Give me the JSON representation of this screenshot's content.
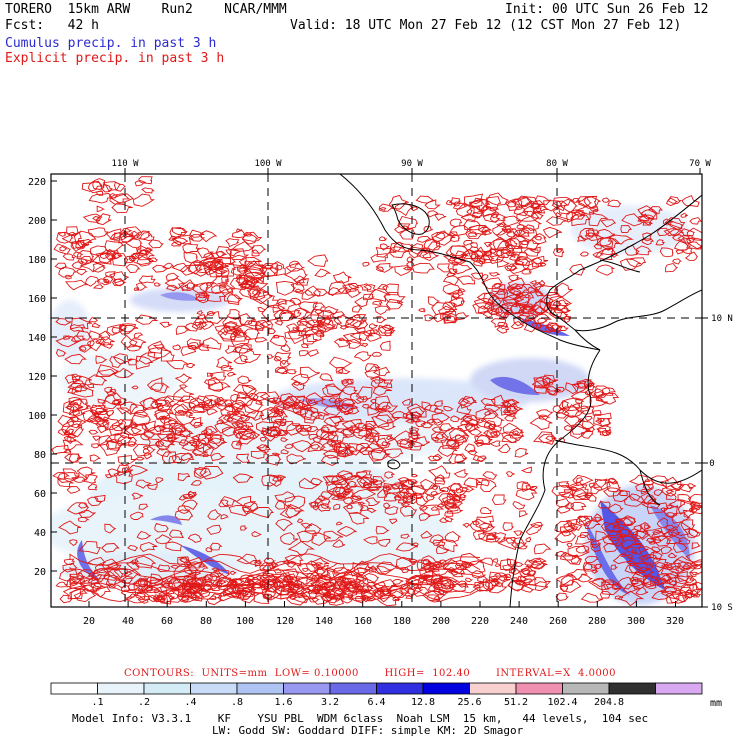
{
  "header": {
    "model": "TORERO  15km ARW    Run2    NCAR/MMM",
    "init": "Init: 00 UTC Sun 26 Feb 12",
    "fcst": "Fcst:   42 h",
    "valid": "Valid: 18 UTC Mon 27 Feb 12 (12 CST Mon 27 Feb 12)",
    "cumulus_label": "Cumulus precip. in past 3 h",
    "explicit_label": "Explicit precip. in past 3 h"
  },
  "colors": {
    "cumulus": "#2a2ad0",
    "explicit": "#e01818",
    "coast": "#000000",
    "grid": "#000000"
  },
  "map": {
    "top_lon_labels": [
      "110 W",
      "100 W",
      "90 W",
      "80 W",
      "70 W"
    ],
    "right_lat_labels": [
      "10 N",
      "0",
      "10 S"
    ],
    "left_ticks": [
      "220",
      "200",
      "180",
      "160",
      "140",
      "120",
      "100",
      "80",
      "60",
      "40",
      "20"
    ],
    "bottom_ticks": [
      "20",
      "40",
      "60",
      "80",
      "100",
      "120",
      "140",
      "160",
      "180",
      "200",
      "220",
      "240",
      "260",
      "280",
      "300",
      "320"
    ]
  },
  "contours_line": "CONTOURS:  UNITS=mm  LOW= 0.10000       HIGH=  102.40       INTERVAL=X  4.0000",
  "colorbar": {
    "labels": [
      ".1",
      ".2",
      ".4",
      ".8",
      "1.6",
      "3.2",
      "6.4",
      "12.8",
      "25.6",
      "51.2",
      "102.4",
      "204.8"
    ],
    "unit": "mm",
    "colors": [
      "#ffffff",
      "#e8f4fa",
      "#d4ecf6",
      "#c8dcf8",
      "#b0c4f4",
      "#9898f0",
      "#6a6ae8",
      "#3030e0",
      "#0000e0",
      "#f8d0d0",
      "#f090b0",
      "#b8b8b8",
      "#303030",
      "#d8a8f0"
    ]
  },
  "footer": {
    "line1": "Model Info: V3.3.1    KF    YSU PBL  WDM 6class  Noah LSM  15 km,   44 levels,  104 sec",
    "line2": "LW: Godd SW: Goddard DIFF: simple KM: 2D Smagor"
  }
}
